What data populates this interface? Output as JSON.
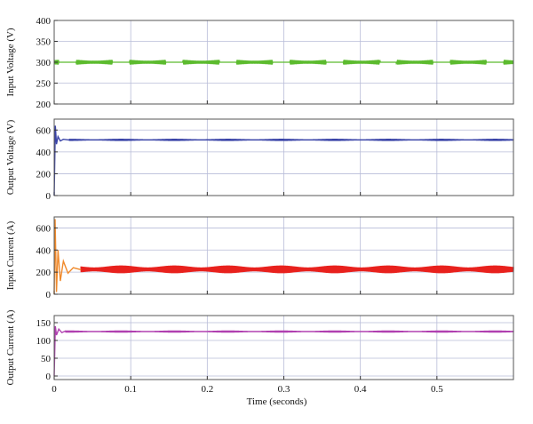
{
  "chart_data": [
    {
      "type": "line",
      "ylabel": "Input Voltage (V)",
      "xlim": [
        0,
        0.6
      ],
      "ylim": [
        200,
        400
      ],
      "yticks": [
        200,
        250,
        300,
        350,
        400
      ],
      "xticks": [
        0,
        0.1,
        0.2,
        0.3,
        0.4,
        0.5
      ],
      "grid": true,
      "series": [
        {
          "color": "#5cbb2e",
          "steady_value": 300,
          "transient": [],
          "ripple": 1
        }
      ]
    },
    {
      "type": "line",
      "ylabel": "Output Voltage (V)",
      "xlim": [
        0,
        0.6
      ],
      "ylim": [
        0,
        700
      ],
      "yticks": [
        0,
        200,
        400,
        600
      ],
      "xticks": [
        0,
        0.1,
        0.2,
        0.3,
        0.4,
        0.5
      ],
      "grid": true,
      "series": [
        {
          "color": "#3a44a8",
          "steady_value": 510,
          "transient": [
            [
              0,
              0
            ],
            [
              0.0015,
              640
            ],
            [
              0.003,
              470
            ],
            [
              0.005,
              540
            ],
            [
              0.008,
              500
            ],
            [
              0.012,
              515
            ],
            [
              0.02,
              508
            ]
          ],
          "ripple": 10
        }
      ]
    },
    {
      "type": "line",
      "ylabel": "Input Current (A)",
      "xlim": [
        0,
        0.6
      ],
      "ylim": [
        0,
        700
      ],
      "yticks": [
        0,
        200,
        400,
        600
      ],
      "xticks": [
        0,
        0.1,
        0.2,
        0.3,
        0.4,
        0.5
      ],
      "grid": true,
      "series": [
        {
          "color": "#e8211d",
          "transient_color": "#f08a2c",
          "steady_value": 225,
          "transient": [
            [
              0,
              0
            ],
            [
              0.0012,
              680
            ],
            [
              0.003,
              20
            ],
            [
              0.005,
              400
            ],
            [
              0.008,
              120
            ],
            [
              0.012,
              300
            ],
            [
              0.018,
              190
            ],
            [
              0.025,
              240
            ],
            [
              0.035,
              222
            ]
          ],
          "ripple": 35
        }
      ]
    },
    {
      "type": "line",
      "ylabel": "Output Current (A)",
      "xlim": [
        0,
        0.6
      ],
      "ylim": [
        -10,
        170
      ],
      "yticks": [
        0,
        50,
        100,
        150
      ],
      "xticks": [
        0,
        0.1,
        0.2,
        0.3,
        0.4,
        0.5
      ],
      "xtick_labels": [
        "0",
        "0.1",
        "0.2",
        "0.3",
        "0.4",
        "0.5"
      ],
      "xlabel": "Time (seconds)",
      "grid": true,
      "series": [
        {
          "color": "#b040b0",
          "steady_value": 125,
          "transient": [
            [
              0,
              0
            ],
            [
              0.0015,
              140
            ],
            [
              0.003,
              115
            ],
            [
              0.006,
              132
            ],
            [
              0.01,
              122
            ],
            [
              0.015,
              127
            ]
          ],
          "ripple": 3
        }
      ]
    }
  ]
}
